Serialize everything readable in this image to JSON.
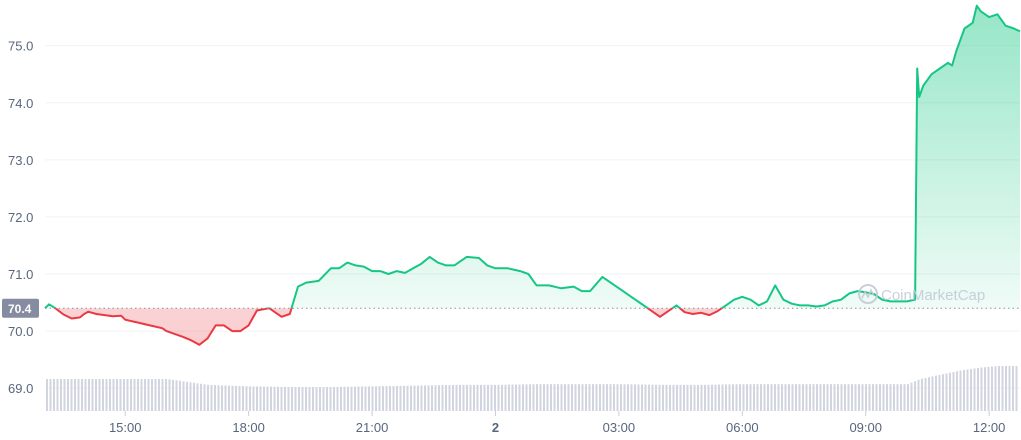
{
  "chart_data": {
    "type": "area",
    "reference_value": 70.4,
    "reference_label": "70.4",
    "y_axis": {
      "ticks": [
        69.0,
        70.0,
        71.0,
        72.0,
        73.0,
        74.0,
        75.0
      ],
      "tick_labels": [
        "69.0",
        "70.0",
        "71.0",
        "72.0",
        "73.0",
        "74.0",
        "75.0"
      ],
      "min": 68.6,
      "max": 75.8
    },
    "x_axis": {
      "tick_labels": [
        "15:00",
        "18:00",
        "21:00",
        "2",
        "03:00",
        "06:00",
        "09:00",
        "12:00"
      ],
      "tick_hours": [
        15,
        18,
        21,
        24,
        27,
        30,
        33,
        36
      ],
      "bold_labels": [
        "2"
      ],
      "min_hour": 13.05,
      "max_hour": 36.75
    },
    "series": [
      {
        "x_hours": [
          13.05,
          13.15,
          13.3,
          13.5,
          13.7,
          13.9,
          14.0,
          14.1,
          14.3,
          14.5,
          14.7,
          14.9,
          15.0,
          15.3,
          15.6,
          15.9,
          16.0,
          16.2,
          16.4,
          16.6,
          16.8,
          17.0,
          17.2,
          17.4,
          17.6,
          17.8,
          18.0,
          18.2,
          18.5,
          18.8,
          19.0,
          19.2,
          19.4,
          19.7,
          20.0,
          20.2,
          20.4,
          20.6,
          20.8,
          21.0,
          21.2,
          21.4,
          21.6,
          21.8,
          22.0,
          22.2,
          22.4,
          22.6,
          22.8,
          23.0,
          23.3,
          23.6,
          23.8,
          24.0,
          24.3,
          24.6,
          24.8,
          25.0,
          25.3,
          25.6,
          25.9,
          26.1,
          26.3,
          26.6,
          26.9,
          27.1,
          27.3,
          27.5,
          27.7,
          28.0,
          28.2,
          28.4,
          28.6,
          28.8,
          29.0,
          29.2,
          29.4,
          29.6,
          29.8,
          30.0,
          30.2,
          30.4,
          30.6,
          30.8,
          31.0,
          31.2,
          31.4,
          31.6,
          31.8,
          32.0,
          32.2,
          32.4,
          32.6,
          32.8,
          33.0,
          33.2,
          33.4,
          33.6,
          33.8,
          34.0,
          34.2,
          34.25,
          34.3,
          34.4,
          34.6,
          34.8,
          35.0,
          35.1,
          35.2,
          35.4,
          35.6,
          35.7,
          35.8,
          36.0,
          36.2,
          36.4,
          36.6,
          36.75
        ],
        "values": [
          70.4,
          70.47,
          70.4,
          70.29,
          70.22,
          70.24,
          70.3,
          70.34,
          70.3,
          70.28,
          70.26,
          70.27,
          70.2,
          70.15,
          70.1,
          70.05,
          70.0,
          69.95,
          69.9,
          69.84,
          69.76,
          69.87,
          70.1,
          70.1,
          70.0,
          70.0,
          70.1,
          70.36,
          70.4,
          70.25,
          70.3,
          70.78,
          70.85,
          70.88,
          71.1,
          71.1,
          71.2,
          71.15,
          71.13,
          71.05,
          71.05,
          71.0,
          71.05,
          71.02,
          71.1,
          71.18,
          71.3,
          71.2,
          71.15,
          71.15,
          71.3,
          71.28,
          71.15,
          71.1,
          71.1,
          71.05,
          71.0,
          70.8,
          70.8,
          70.75,
          70.78,
          70.7,
          70.7,
          70.95,
          70.8,
          70.7,
          70.6,
          70.5,
          70.4,
          70.25,
          70.35,
          70.45,
          70.33,
          70.3,
          70.32,
          70.28,
          70.35,
          70.45,
          70.55,
          70.6,
          70.55,
          70.45,
          70.52,
          70.8,
          70.55,
          70.48,
          70.45,
          70.45,
          70.43,
          70.45,
          70.52,
          70.55,
          70.66,
          70.7,
          70.68,
          70.65,
          70.55,
          70.52,
          70.52,
          70.52,
          70.55,
          74.6,
          74.1,
          74.3,
          74.5,
          74.6,
          74.7,
          74.65,
          74.9,
          75.3,
          75.4,
          75.7,
          75.6,
          75.5,
          75.55,
          75.35,
          75.3,
          75.25
        ]
      }
    ],
    "volume": {
      "x_hours": [
        13.05,
        16.0,
        17.0,
        18.0,
        19.0,
        20.0,
        21.0,
        22.0,
        23.0,
        24.0,
        25.0,
        26.0,
        27.0,
        28.0,
        29.0,
        30.0,
        31.0,
        32.0,
        33.0,
        34.0,
        34.3,
        34.8,
        35.3,
        35.8,
        36.2,
        36.75
      ],
      "values": [
        0.44,
        0.44,
        0.36,
        0.34,
        0.33,
        0.33,
        0.34,
        0.35,
        0.36,
        0.36,
        0.37,
        0.37,
        0.37,
        0.36,
        0.36,
        0.37,
        0.37,
        0.37,
        0.37,
        0.37,
        0.44,
        0.5,
        0.56,
        0.6,
        0.62,
        0.62
      ],
      "unit": "relative height (0-1 of volume band)"
    },
    "colors": {
      "up": "#16c784",
      "down": "#ea3943",
      "reference_label_bg": "#858ca2",
      "volume": "#d0d5df",
      "grid": "#eff2f5",
      "tick_text": "#58667e"
    },
    "grid": true
  },
  "watermark": {
    "text": "CoinMarketCap",
    "icon": "coinmarketcap-logo-icon"
  }
}
